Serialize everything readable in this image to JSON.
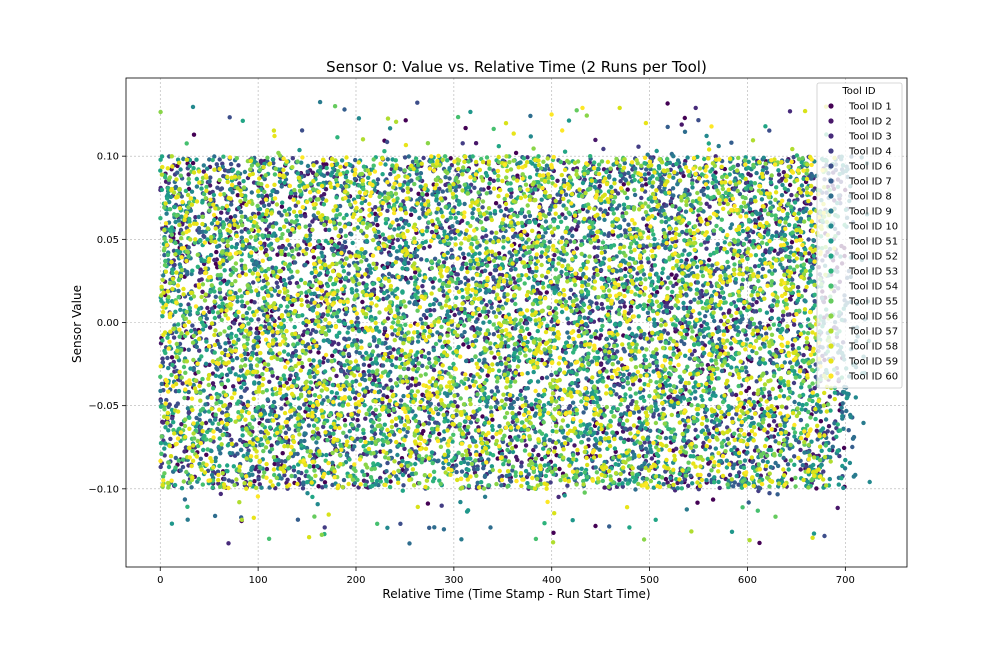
{
  "chart_data": {
    "type": "scatter",
    "title": "Sensor 0: Value vs. Relative Time (2 Runs per Tool)",
    "xlabel": "Relative Time (Time Stamp - Run Start Time)",
    "ylabel": "Sensor Value",
    "xlim": [
      -35,
      763
    ],
    "ylim": [
      -0.147,
      0.147
    ],
    "xticks": [
      0,
      100,
      200,
      300,
      400,
      500,
      600,
      700
    ],
    "yticks": [
      -0.1,
      -0.05,
      0.0,
      0.05,
      0.1
    ],
    "ytick_labels": [
      "−0.10",
      "−0.05",
      "0.00",
      "0.05",
      "0.10"
    ],
    "grid": true,
    "legend": {
      "title": "Tool ID",
      "placement": "top-right"
    },
    "series": [
      {
        "name": "Tool ID 1",
        "color": "#440154",
        "duration": 700,
        "seed": 11
      },
      {
        "name": "Tool ID 2",
        "color": "#481769",
        "duration": 695,
        "seed": 12
      },
      {
        "name": "Tool ID 3",
        "color": "#472a7a",
        "duration": 690,
        "seed": 13
      },
      {
        "name": "Tool ID 4",
        "color": "#433d84",
        "duration": 705,
        "seed": 14
      },
      {
        "name": "Tool ID 6",
        "color": "#3d4e8a",
        "duration": 698,
        "seed": 15
      },
      {
        "name": "Tool ID 7",
        "color": "#355e8d",
        "duration": 710,
        "seed": 16
      },
      {
        "name": "Tool ID 8",
        "color": "#2e6d8e",
        "duration": 712,
        "seed": 17
      },
      {
        "name": "Tool ID 9",
        "color": "#297b8e",
        "duration": 720,
        "seed": 18
      },
      {
        "name": "Tool ID 10",
        "color": "#23898e",
        "duration": 725,
        "seed": 19
      },
      {
        "name": "Tool ID 51",
        "color": "#1f978b",
        "duration": 702,
        "seed": 20
      },
      {
        "name": "Tool ID 52",
        "color": "#21a585",
        "duration": 696,
        "seed": 21
      },
      {
        "name": "Tool ID 53",
        "color": "#2eb37c",
        "duration": 700,
        "seed": 22
      },
      {
        "name": "Tool ID 54",
        "color": "#46c06f",
        "duration": 690,
        "seed": 23
      },
      {
        "name": "Tool ID 55",
        "color": "#65cb5e",
        "duration": 685,
        "seed": 24
      },
      {
        "name": "Tool ID 56",
        "color": "#89d548",
        "duration": 680,
        "seed": 25
      },
      {
        "name": "Tool ID 57",
        "color": "#b0dd2f",
        "duration": 688,
        "seed": 26
      },
      {
        "name": "Tool ID 58",
        "color": "#d8e219",
        "duration": 690,
        "seed": 27
      },
      {
        "name": "Tool ID 59",
        "color": "#e8e419",
        "duration": 684,
        "seed": 28
      },
      {
        "name": "Tool ID 60",
        "color": "#fde725",
        "duration": 680,
        "seed": 29
      }
    ],
    "points_per_series": 600
  }
}
